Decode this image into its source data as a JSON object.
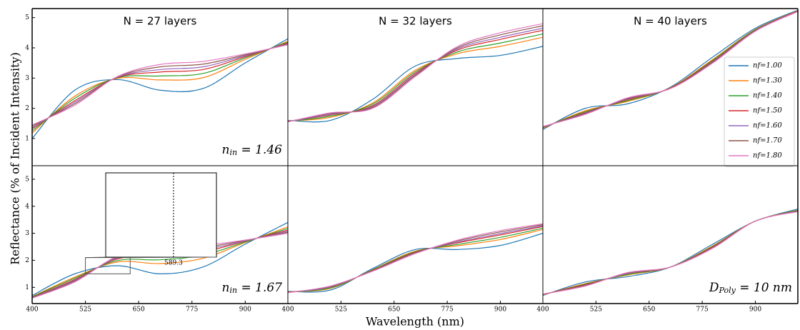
{
  "figure": {
    "ylabel": "Reflectance (% of Incident Intensity)",
    "xlabel": "Wavelength (nm)"
  },
  "chart_data": [
    {
      "type": "line",
      "title": "N = 27 layers",
      "x": [
        400,
        500,
        600,
        700,
        800,
        900,
        1000
      ],
      "xlim": [
        400,
        1000
      ],
      "ylim": [
        0.1,
        5.3
      ],
      "yticks": [
        1,
        2,
        3,
        4,
        5
      ],
      "annotation": [
        "n",
        "in",
        " = 1.46"
      ],
      "series": [
        {
          "color": "#1f77b4",
          "values": [
            1.0,
            2.6,
            2.95,
            2.6,
            2.65,
            3.5,
            4.3
          ]
        },
        {
          "color": "#ff7f0e",
          "values": [
            1.18,
            2.4,
            2.99,
            2.94,
            3.01,
            3.62,
            4.22
          ]
        },
        {
          "color": "#2ca02c",
          "values": [
            1.25,
            2.33,
            3.01,
            3.07,
            3.15,
            3.67,
            4.19
          ]
        },
        {
          "color": "#d62728",
          "values": [
            1.32,
            2.25,
            3.02,
            3.2,
            3.28,
            3.71,
            4.16
          ]
        },
        {
          "color": "#9467bd",
          "values": [
            1.36,
            2.2,
            3.03,
            3.28,
            3.37,
            3.74,
            4.14
          ]
        },
        {
          "color": "#8c564b",
          "values": [
            1.41,
            2.15,
            3.04,
            3.37,
            3.46,
            3.77,
            4.12
          ]
        },
        {
          "color": "#e377c2",
          "values": [
            1.45,
            2.1,
            3.05,
            3.45,
            3.55,
            3.8,
            4.1
          ]
        }
      ]
    },
    {
      "type": "line",
      "title": "N = 32 layers",
      "x": [
        400,
        500,
        600,
        700,
        800,
        900,
        1000
      ],
      "xlim": [
        400,
        1000
      ],
      "ylim": [
        0.1,
        5.3
      ],
      "series": [
        {
          "color": "#1f77b4",
          "values": [
            1.6,
            1.6,
            2.3,
            3.4,
            3.65,
            3.75,
            4.05
          ]
        },
        {
          "color": "#ff7f0e",
          "values": [
            1.58,
            1.7,
            2.18,
            3.26,
            3.81,
            4.05,
            4.35
          ]
        },
        {
          "color": "#2ca02c",
          "values": [
            1.57,
            1.74,
            2.14,
            3.21,
            3.87,
            4.16,
            4.46
          ]
        },
        {
          "color": "#d62728",
          "values": [
            1.57,
            1.78,
            2.09,
            3.16,
            3.93,
            4.28,
            4.58
          ]
        },
        {
          "color": "#9467bd",
          "values": [
            1.56,
            1.8,
            2.06,
            3.12,
            3.97,
            4.35,
            4.65
          ]
        },
        {
          "color": "#8c564b",
          "values": [
            1.56,
            1.83,
            2.03,
            3.09,
            4.01,
            4.43,
            4.73
          ]
        },
        {
          "color": "#e377c2",
          "values": [
            1.55,
            1.85,
            2.0,
            3.05,
            4.05,
            4.5,
            4.8
          ]
        }
      ]
    },
    {
      "type": "line",
      "title": "N = 40 layers",
      "x": [
        400,
        500,
        600,
        700,
        800,
        900,
        1000
      ],
      "xlim": [
        400,
        1000
      ],
      "ylim": [
        0.1,
        5.3
      ],
      "legend": "right",
      "series": [
        {
          "name": "nf=1.00",
          "color": "#1f77b4",
          "values": [
            1.3,
            2.0,
            2.15,
            2.7,
            3.7,
            4.65,
            5.25
          ]
        },
        {
          "name": "nf=1.30",
          "color": "#ff7f0e",
          "values": [
            1.34,
            1.92,
            2.23,
            2.68,
            3.62,
            4.61,
            5.23
          ]
        },
        {
          "name": "nf=1.40",
          "color": "#2ca02c",
          "values": [
            1.36,
            1.89,
            2.26,
            2.67,
            3.59,
            4.6,
            5.22
          ]
        },
        {
          "name": "nf=1.50",
          "color": "#d62728",
          "values": [
            1.37,
            1.86,
            2.29,
            2.67,
            3.56,
            4.58,
            5.22
          ]
        },
        {
          "name": "nf=1.60",
          "color": "#9467bd",
          "values": [
            1.38,
            1.84,
            2.31,
            2.66,
            3.54,
            4.57,
            5.21
          ]
        },
        {
          "name": "nf=1.70",
          "color": "#8c564b",
          "values": [
            1.39,
            1.82,
            2.33,
            2.66,
            3.52,
            4.56,
            5.2
          ]
        },
        {
          "name": "nf=1.80",
          "color": "#e377c2",
          "values": [
            1.4,
            1.8,
            2.35,
            2.65,
            3.5,
            4.55,
            5.2
          ]
        }
      ]
    },
    {
      "type": "line",
      "x": [
        400,
        500,
        600,
        700,
        800,
        900,
        1000
      ],
      "xlim": [
        400,
        1000
      ],
      "ylim": [
        0.4,
        5.5
      ],
      "yticks": [
        1,
        2,
        3,
        4,
        5
      ],
      "xticks": [
        400,
        525,
        650,
        775,
        900
      ],
      "annotation": [
        "n",
        "in",
        " = 1.67"
      ],
      "inset_xtick": 589.3,
      "series": [
        {
          "color": "#1f77b4",
          "values": [
            0.7,
            1.5,
            1.8,
            1.5,
            1.75,
            2.6,
            3.4
          ]
        },
        {
          "color": "#ff7f0e",
          "values": [
            0.66,
            1.38,
            1.94,
            1.88,
            2.07,
            2.66,
            3.24
          ]
        },
        {
          "color": "#2ca02c",
          "values": [
            0.65,
            1.34,
            1.99,
            2.02,
            2.19,
            2.68,
            3.18
          ]
        },
        {
          "color": "#d62728",
          "values": [
            0.63,
            1.29,
            2.05,
            2.17,
            2.31,
            2.71,
            3.12
          ]
        },
        {
          "color": "#9467bd",
          "values": [
            0.62,
            1.26,
            2.08,
            2.26,
            2.39,
            2.72,
            3.08
          ]
        },
        {
          "color": "#8c564b",
          "values": [
            0.61,
            1.23,
            2.12,
            2.36,
            2.47,
            2.74,
            3.04
          ]
        },
        {
          "color": "#e377c2",
          "values": [
            0.6,
            1.2,
            2.15,
            2.45,
            2.55,
            2.75,
            3.0
          ]
        }
      ]
    },
    {
      "type": "line",
      "x": [
        400,
        500,
        600,
        700,
        800,
        900,
        1000
      ],
      "xlim": [
        400,
        1000
      ],
      "ylim": [
        0.4,
        5.5
      ],
      "xticks": [
        400,
        525,
        650,
        775,
        900
      ],
      "series": [
        {
          "color": "#1f77b4",
          "values": [
            0.85,
            0.9,
            1.7,
            2.4,
            2.4,
            2.55,
            3.0
          ]
        },
        {
          "color": "#ff7f0e",
          "values": [
            0.83,
            0.96,
            1.66,
            2.34,
            2.54,
            2.77,
            3.14
          ]
        },
        {
          "color": "#2ca02c",
          "values": [
            0.82,
            0.98,
            1.65,
            2.32,
            2.59,
            2.85,
            3.19
          ]
        },
        {
          "color": "#d62728",
          "values": [
            0.82,
            1.01,
            1.63,
            2.3,
            2.65,
            2.94,
            3.25
          ]
        },
        {
          "color": "#9467bd",
          "values": [
            0.81,
            1.02,
            1.62,
            2.28,
            2.68,
            2.99,
            3.28
          ]
        },
        {
          "color": "#8c564b",
          "values": [
            0.81,
            1.04,
            1.61,
            2.27,
            2.72,
            3.05,
            3.32
          ]
        },
        {
          "color": "#e377c2",
          "values": [
            0.8,
            1.05,
            1.6,
            2.25,
            2.75,
            3.1,
            3.35
          ]
        }
      ]
    },
    {
      "type": "line",
      "x": [
        400,
        500,
        600,
        700,
        800,
        900,
        1000
      ],
      "xlim": [
        400,
        1000
      ],
      "ylim": [
        0.4,
        5.5
      ],
      "xticks": [
        400,
        525,
        650,
        775,
        900
      ],
      "annotation": [
        "D",
        "Poly",
        " = 10 nm"
      ],
      "series": [
        {
          "color": "#1f77b4",
          "values": [
            0.7,
            1.2,
            1.4,
            1.75,
            2.6,
            3.45,
            3.9
          ]
        },
        {
          "color": "#ff7f0e",
          "values": [
            0.72,
            1.14,
            1.46,
            1.75,
            2.54,
            3.45,
            3.86
          ]
        },
        {
          "color": "#2ca02c",
          "values": [
            0.73,
            1.12,
            1.48,
            1.75,
            2.52,
            3.45,
            3.85
          ]
        },
        {
          "color": "#d62728",
          "values": [
            0.74,
            1.1,
            1.51,
            1.75,
            2.5,
            3.45,
            3.83
          ]
        },
        {
          "color": "#9467bd",
          "values": [
            0.74,
            1.08,
            1.52,
            1.75,
            2.48,
            3.45,
            3.82
          ]
        },
        {
          "color": "#8c564b",
          "values": [
            0.75,
            1.07,
            1.54,
            1.75,
            2.47,
            3.45,
            3.81
          ]
        },
        {
          "color": "#e377c2",
          "values": [
            0.75,
            1.05,
            1.55,
            1.75,
            2.45,
            3.45,
            3.8
          ]
        }
      ]
    }
  ]
}
